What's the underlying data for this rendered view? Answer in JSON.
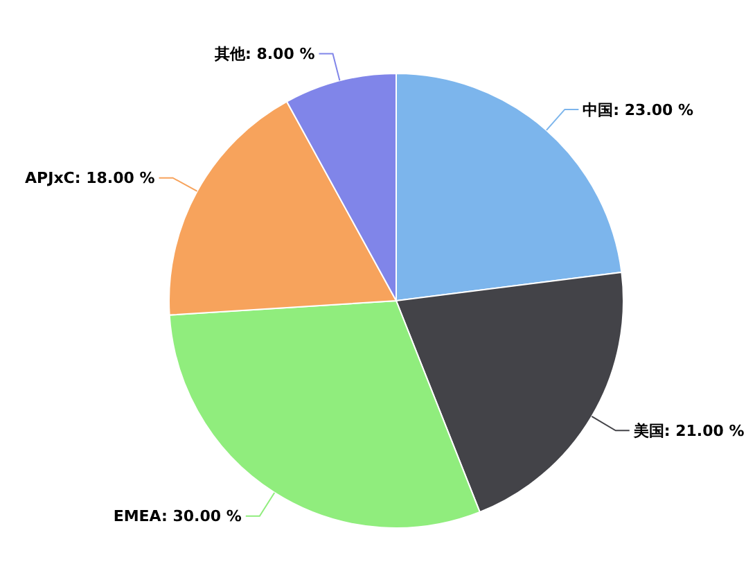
{
  "chart_data": {
    "type": "pie",
    "categories": [
      "中国",
      "美国",
      "EMEA",
      "APJxC",
      "其他"
    ],
    "values": [
      23,
      21,
      30,
      18,
      8
    ],
    "colors": [
      "#7cb5ec",
      "#434348",
      "#90ed7d",
      "#f7a35c",
      "#8085e9"
    ],
    "value_labels": [
      "23.00 %",
      "21.00 %",
      "30.00 %",
      "18.00 %",
      "8.00 %"
    ]
  }
}
